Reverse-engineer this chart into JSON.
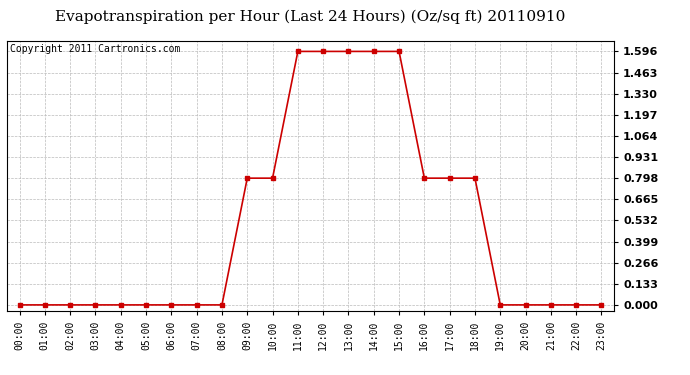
{
  "title": "Evapotranspiration per Hour (Last 24 Hours) (Oz/sq ft) 20110910",
  "copyright_text": "Copyright 2011 Cartronics.com",
  "hours": [
    0,
    1,
    2,
    3,
    4,
    5,
    6,
    7,
    8,
    9,
    10,
    11,
    12,
    13,
    14,
    15,
    16,
    17,
    18,
    19,
    20,
    21,
    22,
    23
  ],
  "values": [
    0.0,
    0.0,
    0.0,
    0.0,
    0.0,
    0.0,
    0.0,
    0.0,
    0.0,
    0.798,
    0.798,
    1.596,
    1.596,
    1.596,
    1.596,
    1.596,
    0.798,
    0.798,
    0.798,
    0.0,
    0.0,
    0.0,
    0.0,
    0.0
  ],
  "x_labels": [
    "00:00",
    "01:00",
    "02:00",
    "03:00",
    "04:00",
    "05:00",
    "06:00",
    "07:00",
    "08:00",
    "09:00",
    "10:00",
    "11:00",
    "12:00",
    "13:00",
    "14:00",
    "15:00",
    "16:00",
    "17:00",
    "18:00",
    "19:00",
    "20:00",
    "21:00",
    "22:00",
    "23:00"
  ],
  "y_ticks": [
    0.0,
    0.133,
    0.266,
    0.399,
    0.532,
    0.665,
    0.798,
    0.931,
    1.064,
    1.197,
    1.33,
    1.463,
    1.596
  ],
  "line_color": "#cc0000",
  "marker": "s",
  "marker_size": 3,
  "background_color": "#ffffff",
  "plot_bg_color": "#ffffff",
  "grid_color": "#bbbbbb",
  "title_fontsize": 11,
  "copyright_fontsize": 7,
  "tick_fontsize": 7,
  "ytick_fontsize": 8,
  "ylim": [
    -0.04,
    1.66
  ],
  "xlim": [
    -0.5,
    23.5
  ]
}
